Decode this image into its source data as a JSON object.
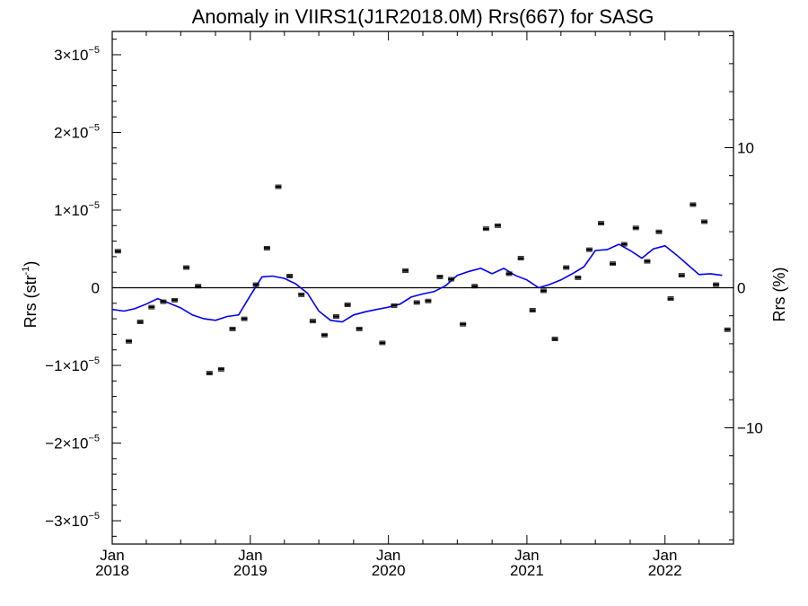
{
  "chart_data": {
    "type": "scatter",
    "title": "Anomaly in VIIRS1(J1R2018.0M) Rrs(667) for SASG",
    "ylabel_left": "Rrs (str",
    "ylabel_left_sup": "-1",
    "ylabel_left_close": ")",
    "ylabel_right": "Rrs (%)",
    "ylim_left_scaled": [
      -3.3,
      3.3
    ],
    "y_scale_exponent": "-5",
    "ylim_right": [
      -18.3,
      18.3
    ],
    "xlim": [
      "2018-01-01",
      "2022-07-01"
    ],
    "zero_line": true,
    "grid": false,
    "left_ticks": [
      {
        "value": 3,
        "mant": "3",
        "exp": "−5"
      },
      {
        "value": 2,
        "mant": "2",
        "exp": "−5"
      },
      {
        "value": 1,
        "mant": "1",
        "exp": "−5"
      },
      {
        "value": 0,
        "mant": "0",
        "exp": ""
      },
      {
        "value": -1,
        "mant": "−1",
        "exp": "−5"
      },
      {
        "value": -2,
        "mant": "−2",
        "exp": "−5"
      },
      {
        "value": -3,
        "mant": "−3",
        "exp": "−5"
      }
    ],
    "right_ticks": [
      {
        "value": 10,
        "label": "10"
      },
      {
        "value": 0,
        "label": "0"
      },
      {
        "value": -10,
        "label": "−10"
      }
    ],
    "x_ticks": [
      {
        "date": "2018-01-01",
        "month": "Jan",
        "year": "2018"
      },
      {
        "date": "2019-01-01",
        "month": "Jan",
        "year": "2019"
      },
      {
        "date": "2020-01-01",
        "month": "Jan",
        "year": "2020"
      },
      {
        "date": "2021-01-01",
        "month": "Jan",
        "year": "2021"
      },
      {
        "date": "2022-01-01",
        "month": "Jan",
        "year": "2022"
      }
    ],
    "series": [
      {
        "kind": "points_with_errorbars",
        "color": "#000000",
        "points": [
          {
            "x": "2018-01-16",
            "y": 0.47
          },
          {
            "x": "2018-02-14",
            "y": -0.69
          },
          {
            "x": "2018-03-16",
            "y": -0.44
          },
          {
            "x": "2018-04-15",
            "y": -0.25
          },
          {
            "x": "2018-05-16",
            "y": -0.18
          },
          {
            "x": "2018-06-15",
            "y": -0.16
          },
          {
            "x": "2018-07-16",
            "y": 0.26
          },
          {
            "x": "2018-08-16",
            "y": 0.02
          },
          {
            "x": "2018-09-15",
            "y": -1.1
          },
          {
            "x": "2018-10-16",
            "y": -1.05
          },
          {
            "x": "2018-11-15",
            "y": -0.53
          },
          {
            "x": "2018-12-16",
            "y": -0.4
          },
          {
            "x": "2019-01-16",
            "y": 0.04
          },
          {
            "x": "2019-02-14",
            "y": 0.51
          },
          {
            "x": "2019-03-16",
            "y": 1.3
          },
          {
            "x": "2019-04-15",
            "y": 0.15
          },
          {
            "x": "2019-05-16",
            "y": -0.09
          },
          {
            "x": "2019-06-15",
            "y": -0.43
          },
          {
            "x": "2019-07-16",
            "y": -0.61
          },
          {
            "x": "2019-08-16",
            "y": -0.37
          },
          {
            "x": "2019-09-15",
            "y": -0.22
          },
          {
            "x": "2019-10-16",
            "y": -0.53
          },
          {
            "x": "2019-12-16",
            "y": -0.71
          },
          {
            "x": "2020-01-16",
            "y": -0.23
          },
          {
            "x": "2020-02-15",
            "y": 0.22
          },
          {
            "x": "2020-03-16",
            "y": -0.19
          },
          {
            "x": "2020-04-15",
            "y": -0.17
          },
          {
            "x": "2020-05-16",
            "y": 0.14
          },
          {
            "x": "2020-06-15",
            "y": 0.11
          },
          {
            "x": "2020-07-16",
            "y": -0.47
          },
          {
            "x": "2020-08-16",
            "y": 0.02
          },
          {
            "x": "2020-09-15",
            "y": 0.76
          },
          {
            "x": "2020-10-16",
            "y": 0.8
          },
          {
            "x": "2020-11-15",
            "y": 0.18
          },
          {
            "x": "2020-12-16",
            "y": 0.38
          },
          {
            "x": "2021-01-16",
            "y": -0.29
          },
          {
            "x": "2021-02-14",
            "y": -0.04
          },
          {
            "x": "2021-03-16",
            "y": -0.66
          },
          {
            "x": "2021-04-15",
            "y": 0.26
          },
          {
            "x": "2021-05-16",
            "y": 0.13
          },
          {
            "x": "2021-06-15",
            "y": 0.49
          },
          {
            "x": "2021-07-16",
            "y": 0.83
          },
          {
            "x": "2021-08-16",
            "y": 0.31
          },
          {
            "x": "2021-09-15",
            "y": 0.56
          },
          {
            "x": "2021-10-16",
            "y": 0.77
          },
          {
            "x": "2021-11-15",
            "y": 0.34
          },
          {
            "x": "2021-12-16",
            "y": 0.72
          },
          {
            "x": "2022-01-16",
            "y": -0.14
          },
          {
            "x": "2022-02-14",
            "y": 0.16
          },
          {
            "x": "2022-03-16",
            "y": 1.07
          },
          {
            "x": "2022-04-15",
            "y": 0.85
          },
          {
            "x": "2022-05-16",
            "y": 0.04
          },
          {
            "x": "2022-06-15",
            "y": -0.54
          }
        ]
      },
      {
        "kind": "line",
        "color": "#0000ee",
        "points": [
          {
            "x": "2018-01-01",
            "y": -0.28
          },
          {
            "x": "2018-02-01",
            "y": -0.3
          },
          {
            "x": "2018-03-01",
            "y": -0.27
          },
          {
            "x": "2018-04-01",
            "y": -0.21
          },
          {
            "x": "2018-05-01",
            "y": -0.14
          },
          {
            "x": "2018-06-01",
            "y": -0.2
          },
          {
            "x": "2018-07-01",
            "y": -0.26
          },
          {
            "x": "2018-08-01",
            "y": -0.35
          },
          {
            "x": "2018-09-01",
            "y": -0.4
          },
          {
            "x": "2018-10-01",
            "y": -0.42
          },
          {
            "x": "2018-11-01",
            "y": -0.37
          },
          {
            "x": "2018-12-01",
            "y": -0.35
          },
          {
            "x": "2019-01-01",
            "y": -0.1
          },
          {
            "x": "2019-02-01",
            "y": 0.14
          },
          {
            "x": "2019-03-01",
            "y": 0.15
          },
          {
            "x": "2019-04-01",
            "y": 0.12
          },
          {
            "x": "2019-05-01",
            "y": 0.05
          },
          {
            "x": "2019-06-01",
            "y": -0.07
          },
          {
            "x": "2019-07-01",
            "y": -0.3
          },
          {
            "x": "2019-08-01",
            "y": -0.42
          },
          {
            "x": "2019-09-01",
            "y": -0.44
          },
          {
            "x": "2019-10-01",
            "y": -0.35
          },
          {
            "x": "2019-11-01",
            "y": -0.31
          },
          {
            "x": "2019-12-01",
            "y": -0.28
          },
          {
            "x": "2020-01-01",
            "y": -0.25
          },
          {
            "x": "2020-02-01",
            "y": -0.21
          },
          {
            "x": "2020-03-01",
            "y": -0.12
          },
          {
            "x": "2020-04-01",
            "y": -0.08
          },
          {
            "x": "2020-05-01",
            "y": -0.05
          },
          {
            "x": "2020-06-01",
            "y": 0.03
          },
          {
            "x": "2020-07-01",
            "y": 0.16
          },
          {
            "x": "2020-08-01",
            "y": 0.21
          },
          {
            "x": "2020-09-01",
            "y": 0.25
          },
          {
            "x": "2020-10-01",
            "y": 0.18
          },
          {
            "x": "2020-11-01",
            "y": 0.25
          },
          {
            "x": "2020-12-01",
            "y": 0.16
          },
          {
            "x": "2021-01-01",
            "y": 0.1
          },
          {
            "x": "2021-02-01",
            "y": 0.0
          },
          {
            "x": "2021-03-01",
            "y": 0.04
          },
          {
            "x": "2021-04-01",
            "y": 0.1
          },
          {
            "x": "2021-05-01",
            "y": 0.18
          },
          {
            "x": "2021-06-01",
            "y": 0.27
          },
          {
            "x": "2021-07-01",
            "y": 0.48
          },
          {
            "x": "2021-08-01",
            "y": 0.49
          },
          {
            "x": "2021-09-01",
            "y": 0.56
          },
          {
            "x": "2021-10-01",
            "y": 0.48
          },
          {
            "x": "2021-11-01",
            "y": 0.38
          },
          {
            "x": "2021-12-01",
            "y": 0.5
          },
          {
            "x": "2022-01-01",
            "y": 0.54
          },
          {
            "x": "2022-02-01",
            "y": 0.42
          },
          {
            "x": "2022-03-01",
            "y": 0.3
          },
          {
            "x": "2022-04-01",
            "y": 0.17
          },
          {
            "x": "2022-05-01",
            "y": 0.18
          },
          {
            "x": "2022-06-01",
            "y": 0.16
          }
        ]
      }
    ]
  }
}
